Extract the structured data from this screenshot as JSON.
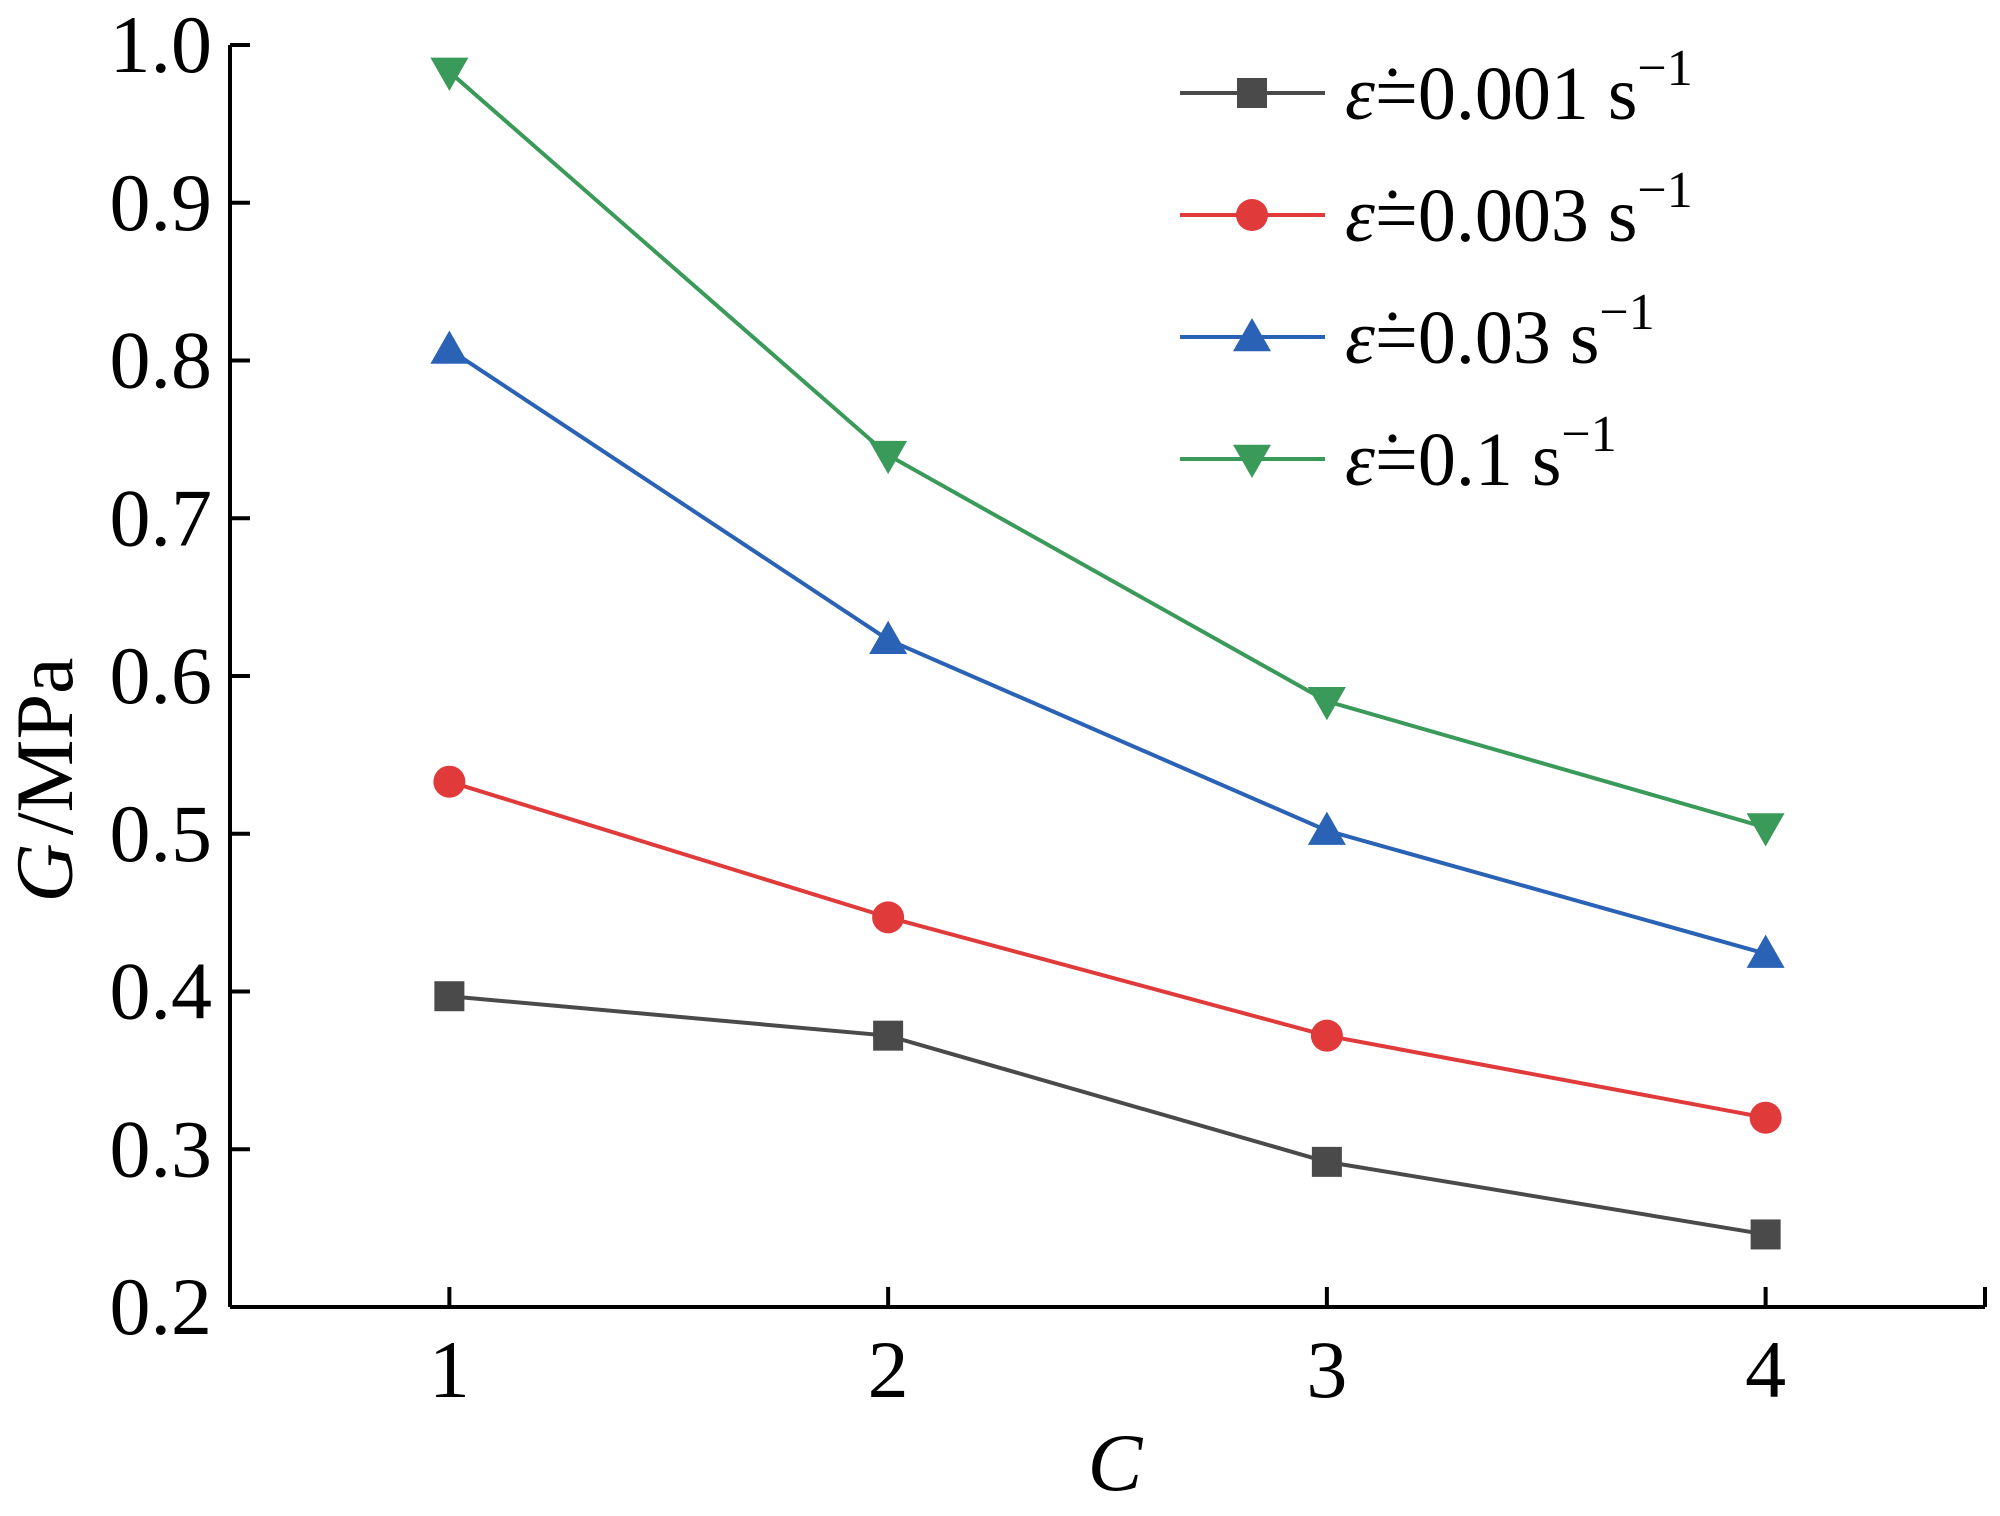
{
  "chart_data": {
    "type": "line",
    "xlabel_var": "C",
    "ylabel_var": "G",
    "ylabel_unit": "/MPa",
    "x": [
      1,
      2,
      3,
      4
    ],
    "x_ticks": [
      "1",
      "2",
      "3",
      "4"
    ],
    "xlim": [
      0.5,
      4.5
    ],
    "ylim": [
      0.2,
      1.0
    ],
    "y_ticks": [
      "0.2",
      "0.3",
      "0.4",
      "0.5",
      "0.6",
      "0.7",
      "0.8",
      "0.9",
      "1.0"
    ],
    "grid": false,
    "legend_position": "top-right",
    "legend_symbol": "ε̇",
    "series": [
      {
        "name": "0.001 s",
        "superscript": "−1",
        "color": "#4a4a4a",
        "marker": "square",
        "values": [
          0.397,
          0.372,
          0.292,
          0.246
        ]
      },
      {
        "name": "0.003 s",
        "superscript": "−1",
        "color": "#e03a3a",
        "marker": "circle",
        "values": [
          0.533,
          0.447,
          0.372,
          0.32
        ]
      },
      {
        "name": "0.03 s",
        "superscript": "−1",
        "color": "#2a62b5",
        "marker": "triangle-up",
        "values": [
          0.807,
          0.623,
          0.502,
          0.424
        ]
      },
      {
        "name": "0.1 s",
        "superscript": "−1",
        "color": "#3a9a5a",
        "marker": "triangle-down",
        "values": [
          0.983,
          0.74,
          0.584,
          0.504
        ]
      }
    ]
  }
}
